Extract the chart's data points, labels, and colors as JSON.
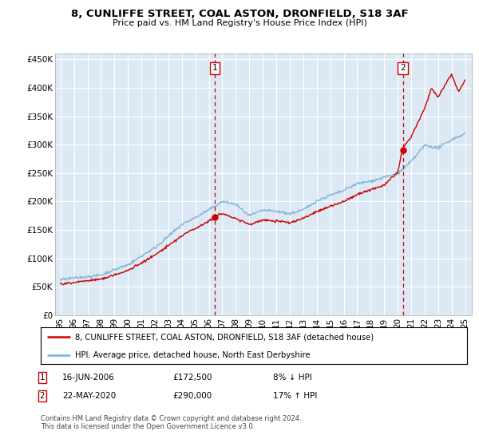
{
  "title": "8, CUNLIFFE STREET, COAL ASTON, DRONFIELD, S18 3AF",
  "subtitle": "Price paid vs. HM Land Registry's House Price Index (HPI)",
  "background_color": "#dce9f5",
  "plot_bg_color": "#dce9f5",
  "ylim": [
    0,
    460000
  ],
  "yticks": [
    0,
    50000,
    100000,
    150000,
    200000,
    250000,
    300000,
    350000,
    400000,
    450000
  ],
  "ytick_labels": [
    "£0",
    "£50K",
    "£100K",
    "£150K",
    "£200K",
    "£250K",
    "£300K",
    "£350K",
    "£400K",
    "£450K"
  ],
  "xlim_start": 1994.6,
  "xlim_end": 2025.5,
  "xticks": [
    1995,
    1996,
    1997,
    1998,
    1999,
    2000,
    2001,
    2002,
    2003,
    2004,
    2005,
    2006,
    2007,
    2008,
    2009,
    2010,
    2011,
    2012,
    2013,
    2014,
    2015,
    2016,
    2017,
    2018,
    2019,
    2020,
    2021,
    2022,
    2023,
    2024,
    2025
  ],
  "xtick_labels": [
    "95",
    "96",
    "97",
    "98",
    "99",
    "00",
    "01",
    "02",
    "03",
    "04",
    "05",
    "06",
    "07",
    "08",
    "09",
    "10",
    "11",
    "12",
    "13",
    "14",
    "15",
    "16",
    "17",
    "18",
    "19",
    "20",
    "21",
    "22",
    "23",
    "24",
    "25"
  ],
  "sale1_x": 2006.455,
  "sale1_y": 172500,
  "sale1_label": "1",
  "sale2_x": 2020.388,
  "sale2_y": 290000,
  "sale2_label": "2",
  "hpi_color": "#7aadd4",
  "price_color": "#cc0000",
  "legend_label1": "8, CUNLIFFE STREET, COAL ASTON, DRONFIELD, S18 3AF (detached house)",
  "legend_label2": "HPI: Average price, detached house, North East Derbyshire",
  "annotation1_date": "16-JUN-2006",
  "annotation1_price": "£172,500",
  "annotation1_hpi": "8% ↓ HPI",
  "annotation2_date": "22-MAY-2020",
  "annotation2_price": "£290,000",
  "annotation2_hpi": "17% ↑ HPI",
  "footer": "Contains HM Land Registry data © Crown copyright and database right 2024.\nThis data is licensed under the Open Government Licence v3.0.",
  "hpi_segments": [
    [
      1995,
      62000
    ],
    [
      1998,
      72000
    ],
    [
      2000,
      90000
    ],
    [
      2002,
      120000
    ],
    [
      2004,
      160000
    ],
    [
      2006,
      185000
    ],
    [
      2007,
      200000
    ],
    [
      2008,
      195000
    ],
    [
      2009,
      175000
    ],
    [
      2010,
      185000
    ],
    [
      2011,
      182000
    ],
    [
      2012,
      178000
    ],
    [
      2013,
      185000
    ],
    [
      2014,
      200000
    ],
    [
      2015,
      210000
    ],
    [
      2016,
      218000
    ],
    [
      2017,
      230000
    ],
    [
      2018,
      235000
    ],
    [
      2019,
      242000
    ],
    [
      2020,
      248000
    ],
    [
      2021,
      270000
    ],
    [
      2022,
      300000
    ],
    [
      2023,
      295000
    ],
    [
      2024,
      310000
    ],
    [
      2025,
      320000
    ]
  ],
  "price_segments": [
    [
      1995,
      55000
    ],
    [
      1998,
      63000
    ],
    [
      2000,
      78000
    ],
    [
      2002,
      105000
    ],
    [
      2004,
      140000
    ],
    [
      2006,
      165000
    ],
    [
      2006.455,
      172500
    ],
    [
      2007,
      178000
    ],
    [
      2008,
      168000
    ],
    [
      2009,
      158000
    ],
    [
      2010,
      165000
    ],
    [
      2011,
      163000
    ],
    [
      2012,
      160000
    ],
    [
      2013,
      168000
    ],
    [
      2014,
      180000
    ],
    [
      2015,
      190000
    ],
    [
      2016,
      198000
    ],
    [
      2017,
      210000
    ],
    [
      2018,
      218000
    ],
    [
      2019,
      226000
    ],
    [
      2020,
      248000
    ],
    [
      2020.388,
      290000
    ],
    [
      2021,
      310000
    ],
    [
      2022,
      360000
    ],
    [
      2022.5,
      395000
    ],
    [
      2023,
      380000
    ],
    [
      2023.5,
      400000
    ],
    [
      2024,
      420000
    ],
    [
      2024.5,
      390000
    ],
    [
      2025,
      410000
    ]
  ]
}
